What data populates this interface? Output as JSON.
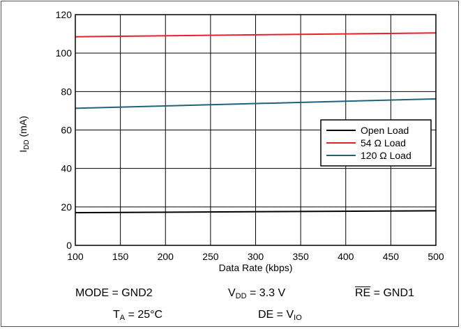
{
  "chart_data": {
    "type": "line",
    "xlabel": "Data Rate (kbps)",
    "ylabel_main": "I",
    "ylabel_sub": "DD",
    "ylabel_unit": " (mA)",
    "xlim": [
      100,
      500
    ],
    "ylim": [
      0,
      120
    ],
    "x_ticks": [
      100,
      150,
      200,
      250,
      300,
      350,
      400,
      450,
      500
    ],
    "y_ticks": [
      0,
      20,
      40,
      60,
      80,
      100,
      120
    ],
    "grid": true,
    "legend_position": "right",
    "series": [
      {
        "name": "Open Load",
        "color": "#000000",
        "x": [
          100,
          500
        ],
        "y": [
          17,
          18
        ]
      },
      {
        "name": "54 Ω Load",
        "color": "#e8202a",
        "x": [
          100,
          500
        ],
        "y": [
          108.5,
          110.5
        ]
      },
      {
        "name": "120 Ω Load",
        "color": "#1e6478",
        "x": [
          100,
          500
        ],
        "y": [
          71.3,
          76.2
        ]
      }
    ]
  },
  "conditions": {
    "mode_label": "MODE = GND2",
    "vdd_main": "V",
    "vdd_sub": "DD",
    "vdd_value": " = 3.3 V",
    "re_label": "RE",
    "re_value": " = GND1",
    "ta_main": "T",
    "ta_sub": "A",
    "ta_value": " = 25°C",
    "de_label": "DE = V",
    "de_sub": "IO"
  }
}
